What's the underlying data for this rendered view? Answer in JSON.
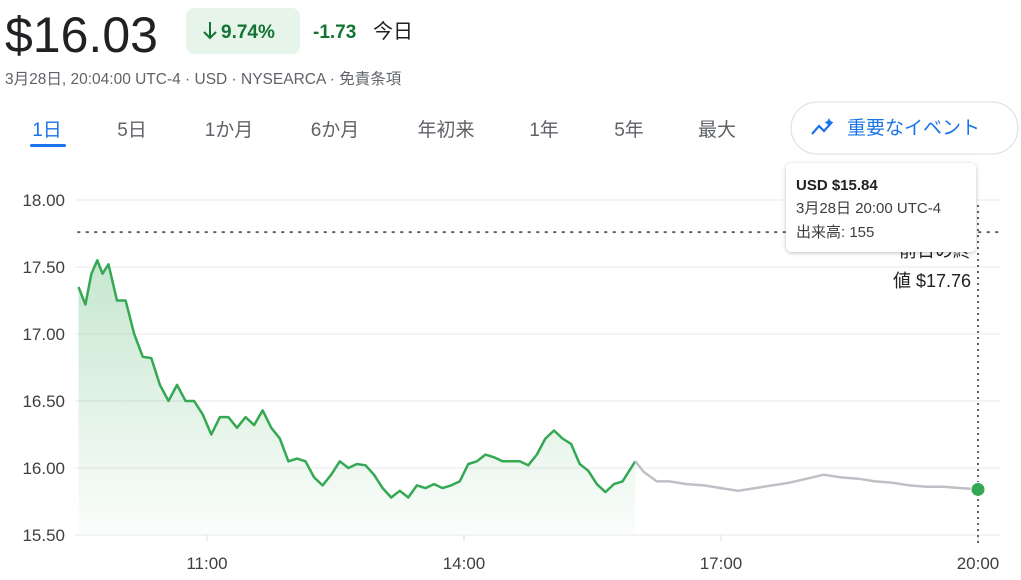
{
  "header": {
    "price": "$16.03",
    "change_percent": "9.74%",
    "change": "-1.73",
    "period": "今日",
    "meta": "3月28日, 20:04:00 UTC-4 · USD · NYSEARCA · 免責条項"
  },
  "tabs": [
    "1日",
    "5日",
    "1か月",
    "6か月",
    "年初来",
    "1年",
    "5年",
    "最大"
  ],
  "events_button": "重要なイベント",
  "tooltip": {
    "price": "USD $15.84",
    "time": "3月28日 20:00 UTC-4",
    "volume": "出来高: 155"
  },
  "chart_data": {
    "type": "line",
    "xlim": [
      9.5,
      20
    ],
    "ylim": [
      15.5,
      18
    ],
    "xticks": [
      {
        "value": 11,
        "label": "11:00"
      },
      {
        "value": 14,
        "label": "14:00"
      },
      {
        "value": 17,
        "label": "17:00"
      },
      {
        "value": 20,
        "label": "20:00"
      }
    ],
    "yticks": [
      {
        "value": 15.5,
        "label": "15.50"
      },
      {
        "value": 16,
        "label": "16.00"
      },
      {
        "value": 16.5,
        "label": "16.50"
      },
      {
        "value": 17,
        "label": "17.00"
      },
      {
        "value": 17.5,
        "label": "17.50"
      },
      {
        "value": 18,
        "label": "18.00"
      }
    ],
    "grid": true,
    "reference_line": {
      "value": 17.76,
      "label_lines": [
        "前日の終",
        "値 $17.76"
      ]
    },
    "series": [
      {
        "color": "#34a853",
        "fill": true,
        "x": [
          9.5,
          9.58,
          9.65,
          9.72,
          9.78,
          9.85,
          9.95,
          10.05,
          10.15,
          10.25,
          10.35,
          10.45,
          10.55,
          10.65,
          10.75,
          10.85,
          10.95,
          11.05,
          11.15,
          11.25,
          11.35,
          11.45,
          11.55,
          11.65,
          11.75,
          11.85,
          11.95,
          12.05,
          12.15,
          12.25,
          12.35,
          12.45,
          12.55,
          12.65,
          12.75,
          12.85,
          12.95,
          13.05,
          13.15,
          13.25,
          13.35,
          13.45,
          13.55,
          13.65,
          13.75,
          13.85,
          13.95,
          14.05,
          14.15,
          14.25,
          14.35,
          14.45,
          14.55,
          14.65,
          14.75,
          14.85,
          14.95,
          15.05,
          15.15,
          15.25,
          15.35,
          15.45,
          15.55,
          15.65,
          15.75,
          15.85,
          15.95,
          16.0
        ],
        "values": [
          17.35,
          17.22,
          17.45,
          17.55,
          17.45,
          17.52,
          17.25,
          17.25,
          17.0,
          16.83,
          16.82,
          16.62,
          16.5,
          16.62,
          16.5,
          16.5,
          16.4,
          16.25,
          16.38,
          16.38,
          16.3,
          16.38,
          16.32,
          16.43,
          16.3,
          16.22,
          16.05,
          16.07,
          16.05,
          15.93,
          15.87,
          15.95,
          16.05,
          16.0,
          16.03,
          16.02,
          15.95,
          15.85,
          15.78,
          15.83,
          15.78,
          15.87,
          15.85,
          15.88,
          15.85,
          15.87,
          15.9,
          16.03,
          16.05,
          16.1,
          16.08,
          16.05,
          16.05,
          16.05,
          16.02,
          16.1,
          16.22,
          16.28,
          16.22,
          16.18,
          16.03,
          15.98,
          15.88,
          15.82,
          15.88,
          15.9,
          16.0,
          16.05
        ]
      },
      {
        "color": "#bdc1c6",
        "fill": false,
        "x": [
          16.0,
          16.1,
          16.25,
          16.4,
          16.6,
          16.8,
          17.0,
          17.2,
          17.4,
          17.6,
          17.8,
          18.0,
          18.2,
          18.4,
          18.6,
          18.8,
          19.0,
          19.2,
          19.4,
          19.6,
          19.8,
          20.0
        ],
        "values": [
          16.05,
          15.97,
          15.9,
          15.9,
          15.88,
          15.87,
          15.85,
          15.83,
          15.85,
          15.87,
          15.89,
          15.92,
          15.95,
          15.93,
          15.92,
          15.9,
          15.89,
          15.87,
          15.86,
          15.86,
          15.85,
          15.84
        ]
      }
    ],
    "marker": {
      "x": 20,
      "value": 15.84,
      "color": "#34a853"
    }
  }
}
